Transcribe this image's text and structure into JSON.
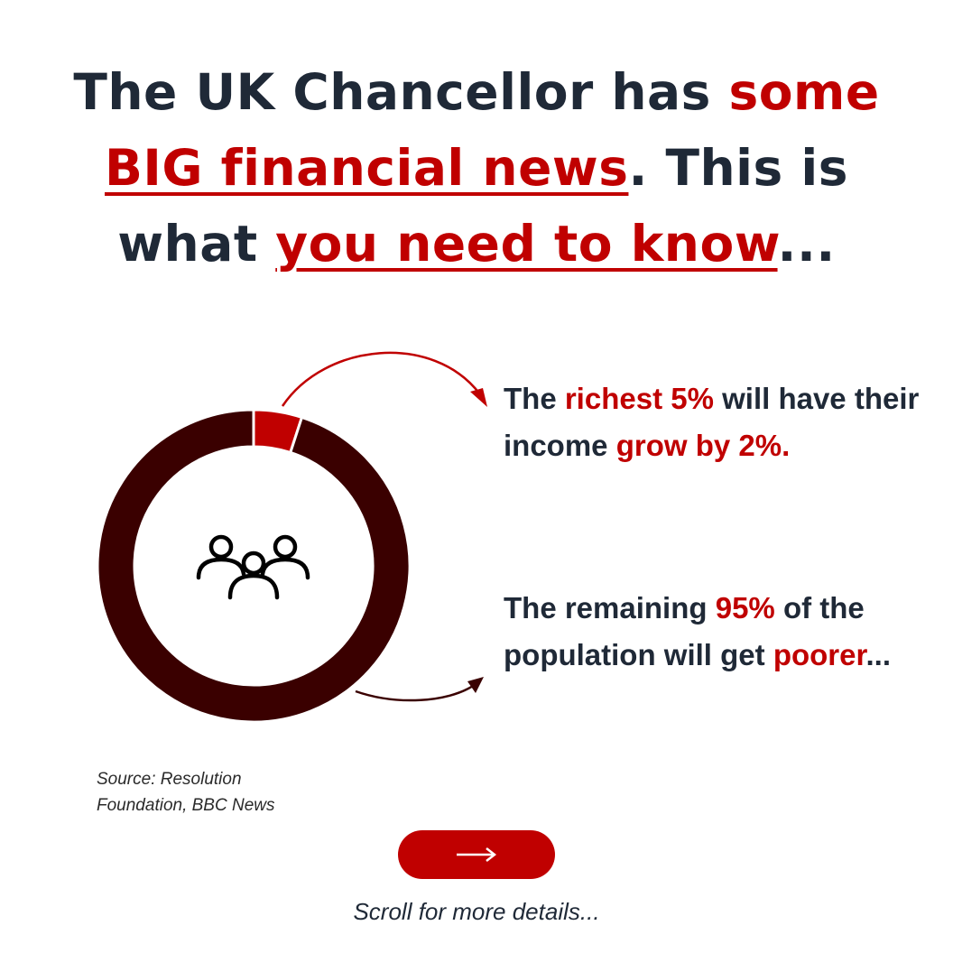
{
  "headline": {
    "line1_plain": "The UK Chancellor has ",
    "line1_accent": "some",
    "line2_accent": "BIG financial news",
    "line2_plain": ". This is",
    "line3_plain": "what ",
    "line3_accent": "you need to know",
    "line3_end": "..."
  },
  "chart_data": {
    "type": "pie",
    "categories": [
      "",
      ""
    ],
    "values": [
      5,
      95
    ],
    "colors": [
      "#c00000",
      "#3a0000"
    ],
    "center_icon": "people-group-icon"
  },
  "stat_top": {
    "part1": "The ",
    "part2": "richest 5%",
    "part3": " will have their income ",
    "part4": "grow by 2%."
  },
  "stat_bottom": {
    "part1": "The remaining ",
    "part2": "95%",
    "part3": " of the population will get ",
    "part4": "poorer",
    "part5": "..."
  },
  "source": {
    "line1": "Source: Resolution",
    "line2": "Foundation, BBC News"
  },
  "next_button": {
    "icon": "arrow-right-icon"
  },
  "scroll_hint": "Scroll for more details...",
  "colors": {
    "accent": "#c00000",
    "dark_ring": "#3a0000",
    "text": "#1f2937"
  }
}
